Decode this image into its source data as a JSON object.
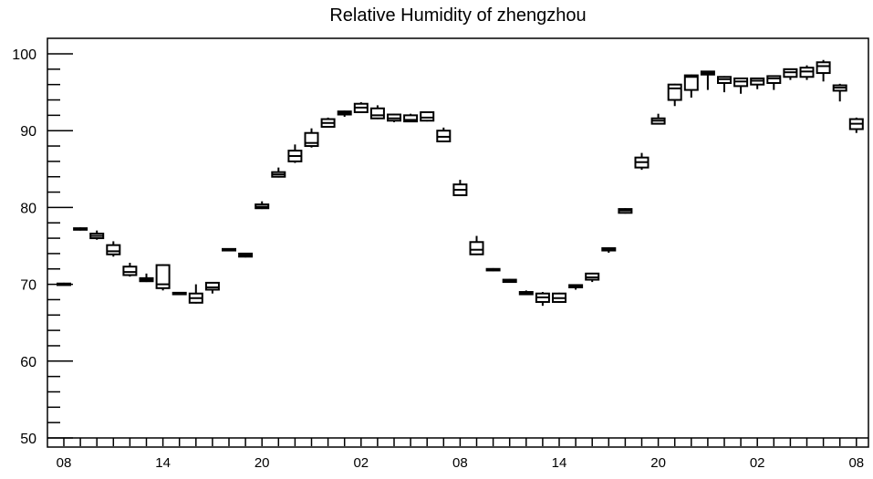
{
  "chart_data": {
    "type": "box",
    "title": "Relative Humidity of zhengzhou",
    "xlabel": "",
    "ylabel": "",
    "ylim": [
      49,
      102
    ],
    "y_ticks": [
      50,
      60,
      70,
      80,
      90,
      100
    ],
    "y_tick_labels": [
      "50",
      "60",
      "70",
      "80",
      "90",
      "100"
    ],
    "x_tick_labels": [
      "08",
      "14",
      "20",
      "02",
      "08",
      "14",
      "20",
      "02",
      "08"
    ],
    "x_tick_hours": [
      0,
      6,
      12,
      18,
      24,
      30,
      36,
      42,
      48
    ],
    "grid": false,
    "boxes": [
      {
        "hour": 0,
        "min": 69.9,
        "q1": 69.9,
        "median": 70.0,
        "q3": 70.1,
        "max": 70.2
      },
      {
        "hour": 1,
        "min": 77.0,
        "q1": 77.1,
        "median": 77.2,
        "q3": 77.3,
        "max": 77.4
      },
      {
        "hour": 2,
        "min": 75.8,
        "q1": 76.0,
        "median": 76.3,
        "q3": 76.6,
        "max": 77.0
      },
      {
        "hour": 3,
        "min": 73.6,
        "q1": 73.9,
        "median": 74.3,
        "q3": 75.1,
        "max": 75.6
      },
      {
        "hour": 4,
        "min": 71.0,
        "q1": 71.2,
        "median": 71.6,
        "q3": 72.3,
        "max": 72.8
      },
      {
        "hour": 5,
        "min": 70.3,
        "q1": 70.4,
        "median": 70.6,
        "q3": 70.8,
        "max": 71.4
      },
      {
        "hour": 6,
        "min": 69.2,
        "q1": 69.5,
        "median": 70.0,
        "q3": 72.5,
        "max": 72.6
      },
      {
        "hour": 7,
        "min": 68.6,
        "q1": 68.7,
        "median": 68.8,
        "q3": 68.9,
        "max": 69.0
      },
      {
        "hour": 8,
        "min": 67.5,
        "q1": 67.6,
        "median": 68.2,
        "q3": 68.8,
        "max": 70.0
      },
      {
        "hour": 9,
        "min": 68.8,
        "q1": 69.3,
        "median": 69.6,
        "q3": 70.2,
        "max": 70.3
      },
      {
        "hour": 10,
        "min": 74.3,
        "q1": 74.4,
        "median": 74.5,
        "q3": 74.6,
        "max": 74.7
      },
      {
        "hour": 11,
        "min": 73.5,
        "q1": 73.6,
        "median": 73.8,
        "q3": 74.0,
        "max": 74.1
      },
      {
        "hour": 12,
        "min": 79.8,
        "q1": 79.9,
        "median": 80.1,
        "q3": 80.4,
        "max": 80.8
      },
      {
        "hour": 13,
        "min": 83.9,
        "q1": 84.0,
        "median": 84.3,
        "q3": 84.6,
        "max": 85.2
      },
      {
        "hour": 14,
        "min": 85.8,
        "q1": 86.0,
        "median": 86.7,
        "q3": 87.4,
        "max": 88.2
      },
      {
        "hour": 15,
        "min": 87.8,
        "q1": 88.0,
        "median": 88.4,
        "q3": 89.7,
        "max": 90.3
      },
      {
        "hour": 16,
        "min": 90.4,
        "q1": 90.5,
        "median": 91.0,
        "q3": 91.5,
        "max": 91.7
      },
      {
        "hour": 17,
        "min": 91.8,
        "q1": 92.1,
        "median": 92.3,
        "q3": 92.5,
        "max": 92.6
      },
      {
        "hour": 18,
        "min": 92.3,
        "q1": 92.4,
        "median": 93.0,
        "q3": 93.5,
        "max": 93.7
      },
      {
        "hour": 19,
        "min": 91.5,
        "q1": 91.6,
        "median": 92.0,
        "q3": 92.9,
        "max": 93.3
      },
      {
        "hour": 20,
        "min": 91.1,
        "q1": 91.3,
        "median": 91.6,
        "q3": 92.1,
        "max": 92.2
      },
      {
        "hour": 21,
        "min": 91.1,
        "q1": 91.2,
        "median": 91.4,
        "q3": 92.0,
        "max": 92.2
      },
      {
        "hour": 22,
        "min": 91.2,
        "q1": 91.3,
        "median": 91.7,
        "q3": 92.4,
        "max": 92.5
      },
      {
        "hour": 23,
        "min": 88.5,
        "q1": 88.6,
        "median": 89.2,
        "q3": 90.0,
        "max": 90.4
      },
      {
        "hour": 24,
        "min": 81.5,
        "q1": 81.6,
        "median": 82.3,
        "q3": 83.0,
        "max": 83.6
      },
      {
        "hour": 25,
        "min": 73.8,
        "q1": 73.9,
        "median": 74.5,
        "q3": 75.5,
        "max": 76.3
      },
      {
        "hour": 26,
        "min": 71.7,
        "q1": 71.8,
        "median": 71.9,
        "q3": 72.0,
        "max": 72.1
      },
      {
        "hour": 27,
        "min": 70.2,
        "q1": 70.3,
        "median": 70.4,
        "q3": 70.6,
        "max": 70.7
      },
      {
        "hour": 28,
        "min": 68.6,
        "q1": 68.7,
        "median": 68.9,
        "q3": 69.0,
        "max": 69.2
      },
      {
        "hour": 29,
        "min": 67.2,
        "q1": 67.7,
        "median": 68.3,
        "q3": 68.8,
        "max": 69.0
      },
      {
        "hour": 30,
        "min": 67.6,
        "q1": 67.7,
        "median": 68.2,
        "q3": 68.8,
        "max": 68.9
      },
      {
        "hour": 31,
        "min": 69.3,
        "q1": 69.6,
        "median": 69.8,
        "q3": 69.9,
        "max": 70.0
      },
      {
        "hour": 32,
        "min": 70.3,
        "q1": 70.6,
        "median": 70.9,
        "q3": 71.4,
        "max": 71.5
      },
      {
        "hour": 33,
        "min": 74.1,
        "q1": 74.4,
        "median": 74.6,
        "q3": 74.7,
        "max": 74.8
      },
      {
        "hour": 34,
        "min": 79.2,
        "q1": 79.3,
        "median": 79.6,
        "q3": 79.8,
        "max": 79.9
      },
      {
        "hour": 35,
        "min": 84.9,
        "q1": 85.2,
        "median": 85.9,
        "q3": 86.5,
        "max": 87.1
      },
      {
        "hour": 36,
        "min": 90.8,
        "q1": 90.9,
        "median": 91.3,
        "q3": 91.6,
        "max": 92.2
      },
      {
        "hour": 37,
        "min": 93.2,
        "q1": 94.0,
        "median": 95.5,
        "q3": 96.0,
        "max": 96.1
      },
      {
        "hour": 38,
        "min": 94.3,
        "q1": 95.3,
        "median": 97.0,
        "q3": 97.2,
        "max": 97.3
      },
      {
        "hour": 39,
        "min": 95.3,
        "q1": 97.3,
        "median": 97.5,
        "q3": 97.7,
        "max": 97.8
      },
      {
        "hour": 40,
        "min": 95.0,
        "q1": 96.2,
        "median": 96.7,
        "q3": 97.0,
        "max": 97.1
      },
      {
        "hour": 41,
        "min": 94.8,
        "q1": 95.8,
        "median": 96.4,
        "q3": 96.8,
        "max": 96.9
      },
      {
        "hour": 42,
        "min": 95.4,
        "q1": 96.0,
        "median": 96.5,
        "q3": 96.8,
        "max": 96.9
      },
      {
        "hour": 43,
        "min": 95.3,
        "q1": 96.2,
        "median": 96.8,
        "q3": 97.1,
        "max": 97.2
      },
      {
        "hour": 44,
        "min": 96.6,
        "q1": 97.0,
        "median": 97.6,
        "q3": 98.0,
        "max": 98.1
      },
      {
        "hour": 45,
        "min": 96.6,
        "q1": 97.0,
        "median": 97.7,
        "q3": 98.2,
        "max": 98.5
      },
      {
        "hour": 46,
        "min": 96.4,
        "q1": 97.5,
        "median": 98.4,
        "q3": 98.9,
        "max": 99.2
      },
      {
        "hour": 47,
        "min": 93.8,
        "q1": 95.2,
        "median": 95.6,
        "q3": 95.9,
        "max": 96.1
      },
      {
        "hour": 48,
        "min": 89.7,
        "q1": 90.2,
        "median": 90.9,
        "q3": 91.5,
        "max": 91.7
      }
    ]
  }
}
